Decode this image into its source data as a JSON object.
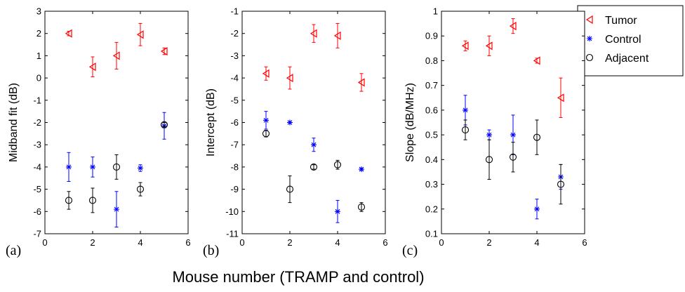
{
  "figure": {
    "xlabel": "Mouse number (TRAMP and control)",
    "legend": {
      "placement": "right",
      "entries": [
        {
          "name": "Tumor",
          "color": "#ff0000",
          "marker": "triangle-left"
        },
        {
          "name": "Control",
          "color": "#0000ff",
          "marker": "star"
        },
        {
          "name": "Adjacent",
          "color": "#000000",
          "marker": "circle"
        }
      ]
    }
  },
  "chart_data": [
    {
      "type": "scatter",
      "panel_label": "(a)",
      "ylabel": "Midband fit (dB)",
      "xlim": [
        0,
        6
      ],
      "ylim": [
        -7,
        3
      ],
      "xticks": [
        0,
        2,
        4,
        6
      ],
      "yticks": [
        -7,
        -6,
        -5,
        -4,
        -3,
        -2,
        -1,
        0,
        1,
        2,
        3
      ],
      "ytick_labels": [
        "-7",
        "-6",
        "-5",
        "-4",
        "-3",
        "-2",
        "-1",
        "0",
        "1",
        "2",
        "3"
      ],
      "grid": false,
      "series": [
        {
          "name": "Tumor",
          "x": [
            1,
            2,
            3,
            4,
            5
          ],
          "y": [
            2.0,
            0.5,
            1.0,
            1.95,
            1.2
          ],
          "err": [
            0.1,
            0.45,
            0.6,
            0.5,
            0.15
          ]
        },
        {
          "name": "Control",
          "x": [
            1,
            2,
            3,
            4,
            5
          ],
          "y": [
            -4.0,
            -4.0,
            -5.9,
            -4.05,
            -2.15
          ],
          "err": [
            0.65,
            0.45,
            0.8,
            0.15,
            0.6
          ]
        },
        {
          "name": "Adjacent",
          "x": [
            1,
            2,
            3,
            4,
            5
          ],
          "y": [
            -5.5,
            -5.5,
            -4.0,
            -5.0,
            -2.1
          ],
          "err": [
            0.4,
            0.55,
            0.55,
            0.3,
            0.1
          ]
        }
      ]
    },
    {
      "type": "scatter",
      "panel_label": "(b)",
      "ylabel": "Intercept (dB)",
      "xlim": [
        0,
        6
      ],
      "ylim": [
        -11,
        -1
      ],
      "xticks": [
        0,
        2,
        4,
        6
      ],
      "yticks": [
        -11,
        -10,
        -9,
        -8,
        -7,
        -6,
        -5,
        -4,
        -3,
        -2,
        -1
      ],
      "ytick_labels": [
        "-11",
        "-10",
        "-9",
        "-8",
        "-7",
        "-6",
        "-5",
        "-4",
        "-3",
        "-2",
        "-1"
      ],
      "grid": false,
      "series": [
        {
          "name": "Tumor",
          "x": [
            1,
            2,
            3,
            4,
            5
          ],
          "y": [
            -3.8,
            -4.0,
            -2.0,
            -2.1,
            -4.2
          ],
          "err": [
            0.3,
            0.5,
            0.4,
            0.55,
            0.4
          ]
        },
        {
          "name": "Control",
          "x": [
            1,
            2,
            3,
            4,
            5
          ],
          "y": [
            -5.9,
            -6.0,
            -7.0,
            -10.0,
            -8.1
          ],
          "err": [
            0.4,
            0.05,
            0.3,
            0.5,
            0.05
          ]
        },
        {
          "name": "Adjacent",
          "x": [
            1,
            2,
            3,
            4,
            5
          ],
          "y": [
            -6.5,
            -9.0,
            -8.0,
            -7.9,
            -9.8
          ],
          "err": [
            0.15,
            0.6,
            0.1,
            0.2,
            0.2
          ]
        }
      ]
    },
    {
      "type": "scatter",
      "panel_label": "(c)",
      "ylabel": "Slope (dB/MHz)",
      "xlim": [
        0,
        6
      ],
      "ylim": [
        0.1,
        1.0
      ],
      "xticks": [
        0,
        2,
        4,
        6
      ],
      "yticks": [
        0.1,
        0.2,
        0.3,
        0.4,
        0.5,
        0.6,
        0.7,
        0.8,
        0.9,
        1.0
      ],
      "ytick_labels": [
        "0.1",
        "0.2",
        "0.3",
        "0.4",
        "0.5",
        "0.6",
        "0.7",
        "0.8",
        "0.9",
        "1"
      ],
      "grid": false,
      "series": [
        {
          "name": "Tumor",
          "x": [
            1,
            2,
            3,
            4,
            5
          ],
          "y": [
            0.86,
            0.86,
            0.94,
            0.8,
            0.65
          ],
          "err": [
            0.02,
            0.04,
            0.03,
            0.01,
            0.08
          ]
        },
        {
          "name": "Control",
          "x": [
            1,
            2,
            3,
            4,
            5
          ],
          "y": [
            0.6,
            0.5,
            0.5,
            0.2,
            0.33
          ],
          "err": [
            0.06,
            0.02,
            0.08,
            0.04,
            0.05
          ]
        },
        {
          "name": "Adjacent",
          "x": [
            1,
            2,
            3,
            4,
            5
          ],
          "y": [
            0.52,
            0.4,
            0.41,
            0.49,
            0.3
          ],
          "err": [
            0.04,
            0.08,
            0.06,
            0.07,
            0.08
          ]
        }
      ]
    }
  ]
}
